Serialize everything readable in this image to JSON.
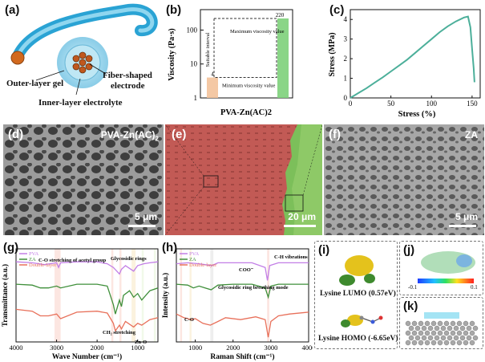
{
  "panels": {
    "a": {
      "label": "(a)",
      "outer_gel": "Outer-layer gel",
      "fiber_electrode_1": "Fiber-shaped",
      "fiber_electrode_2": "electrode",
      "inner_electrolyte": "Inner-layer electrolyte"
    },
    "b": {
      "label": "(b)"
    },
    "c": {
      "label": "(c)"
    },
    "d": {
      "label": "(d)",
      "title": "PVA-Zn(AC)",
      "title_sub": "2",
      "scale": "5 μm"
    },
    "e": {
      "label": "(e)",
      "scale": "20 μm"
    },
    "f": {
      "label": "(f)",
      "title": "ZA",
      "scale": "5 μm"
    },
    "g": {
      "label": "(g)"
    },
    "h": {
      "label": "(h)"
    },
    "i": {
      "label": "(i)",
      "lumo": "Lysine LUMO (0.57eV)",
      "homo": "Lysine HOMO (-6.65eV)"
    },
    "j": {
      "label": "(j)",
      "cbar_min": "-0.1",
      "cbar_max": "0.1"
    },
    "k": {
      "label": "(k)"
    }
  },
  "chart_data": [
    {
      "panel": "b",
      "type": "bar",
      "xlabel": "PVA-Zn(AC)2",
      "ylabel": "Viscosity (Pa·s)",
      "yscale": "log",
      "ylim": [
        1,
        400
      ],
      "yticks": [
        1,
        10,
        100
      ],
      "categories": [
        "Minimum viscosity value",
        "Maximum viscosity value"
      ],
      "values": [
        4,
        220
      ],
      "data_labels": [
        "4",
        "220"
      ],
      "annotations": [
        "Suitable interval",
        "Maximum viscosity value",
        "Minimum viscosity value"
      ],
      "colors": [
        "#f3c29a",
        "#7dd07a"
      ]
    },
    {
      "panel": "c",
      "type": "line",
      "xlabel": "Stress (%)",
      "ylabel": "Stress (MPa)",
      "xlim": [
        0,
        160
      ],
      "ylim": [
        0,
        4.5
      ],
      "xticks": [
        0,
        50,
        100,
        150
      ],
      "yticks": [
        0,
        1,
        2,
        3,
        4
      ],
      "color": "#4caf9a",
      "x": [
        0,
        10,
        20,
        30,
        40,
        50,
        60,
        70,
        80,
        90,
        100,
        110,
        120,
        130,
        140,
        145,
        148,
        150,
        152,
        153
      ],
      "y": [
        0.0,
        0.25,
        0.5,
        0.78,
        1.05,
        1.35,
        1.65,
        1.95,
        2.3,
        2.65,
        3.0,
        3.35,
        3.65,
        3.9,
        4.1,
        4.15,
        3.6,
        2.5,
        1.5,
        0.8
      ]
    },
    {
      "panel": "g",
      "type": "line",
      "xlabel": "Wave Number (cm⁻¹)",
      "ylabel": "Transmittance (a.u.)",
      "xlim": [
        4000,
        500
      ],
      "xticks": [
        4000,
        3000,
        2000,
        1000
      ],
      "annotations": [
        "C-O stretching of acetyl group",
        "Glycosidic rings",
        "CH₂ stretching",
        "Zn-O"
      ],
      "series": [
        {
          "name": "PVA",
          "color": "#c27ee6",
          "x": [
            4000,
            3600,
            3300,
            3000,
            2950,
            2900,
            2500,
            2000,
            1750,
            1600,
            1450,
            1400,
            1300,
            1100,
            1000,
            850,
            700,
            500
          ],
          "y": [
            0.86,
            0.85,
            0.83,
            0.85,
            0.8,
            0.85,
            0.86,
            0.86,
            0.84,
            0.8,
            0.73,
            0.78,
            0.82,
            0.76,
            0.82,
            0.84,
            0.85,
            0.86
          ]
        },
        {
          "name": "ZA",
          "color": "#3f8f3a",
          "x": [
            4000,
            3600,
            3400,
            3200,
            3000,
            2900,
            2500,
            2000,
            1750,
            1600,
            1550,
            1450,
            1400,
            1350,
            1200,
            1100,
            1000,
            900,
            700,
            500
          ],
          "y": [
            0.62,
            0.61,
            0.58,
            0.58,
            0.6,
            0.58,
            0.62,
            0.62,
            0.6,
            0.4,
            0.3,
            0.45,
            0.38,
            0.5,
            0.55,
            0.48,
            0.52,
            0.45,
            0.55,
            0.58
          ]
        },
        {
          "name": "Double-layer",
          "color": "#e8705a",
          "x": [
            4000,
            3600,
            3400,
            3200,
            3000,
            2900,
            2500,
            2000,
            1750,
            1600,
            1550,
            1450,
            1400,
            1300,
            1100,
            1000,
            900,
            700,
            500
          ],
          "y": [
            0.35,
            0.33,
            0.28,
            0.28,
            0.3,
            0.25,
            0.32,
            0.33,
            0.31,
            0.2,
            0.12,
            0.18,
            0.14,
            0.22,
            0.16,
            0.2,
            0.18,
            0.24,
            0.26
          ]
        }
      ]
    },
    {
      "panel": "h",
      "type": "line",
      "xlabel": "Raman Shift (cm⁻¹)",
      "ylabel": "Intensity (a.u.)",
      "xlim": [
        500,
        4000
      ],
      "xticks": [
        1000,
        2000,
        3000,
        4000
      ],
      "annotations": [
        "COO⁻",
        "C-H vibrations",
        "Glycosidic ring breathing mode",
        "C-O"
      ],
      "series": [
        {
          "name": "PVA",
          "color": "#c27ee6",
          "x": [
            500,
            800,
            1100,
            1440,
            1600,
            2000,
            2500,
            2850,
            2910,
            2970,
            3200,
            3600,
            4000
          ],
          "y": [
            0.84,
            0.85,
            0.84,
            0.82,
            0.85,
            0.85,
            0.85,
            0.8,
            0.66,
            0.82,
            0.85,
            0.85,
            0.85
          ]
        },
        {
          "name": "ZA",
          "color": "#3f8f3a",
          "x": [
            500,
            800,
            950,
            1100,
            1420,
            1600,
            2000,
            2500,
            2850,
            2930,
            3000,
            3200,
            3600,
            4000
          ],
          "y": [
            0.62,
            0.61,
            0.58,
            0.6,
            0.56,
            0.61,
            0.62,
            0.62,
            0.58,
            0.48,
            0.6,
            0.62,
            0.62,
            0.62
          ]
        },
        {
          "name": "Double-layer",
          "color": "#e8705a",
          "x": [
            500,
            700,
            900,
            1000,
            1200,
            1400,
            1600,
            1800,
            2200,
            2600,
            2850,
            2930,
            3000,
            3200,
            3500,
            4000
          ],
          "y": [
            0.3,
            0.26,
            0.24,
            0.25,
            0.2,
            0.18,
            0.22,
            0.26,
            0.24,
            0.27,
            0.24,
            0.05,
            0.22,
            0.28,
            0.3,
            0.32
          ]
        }
      ]
    }
  ]
}
